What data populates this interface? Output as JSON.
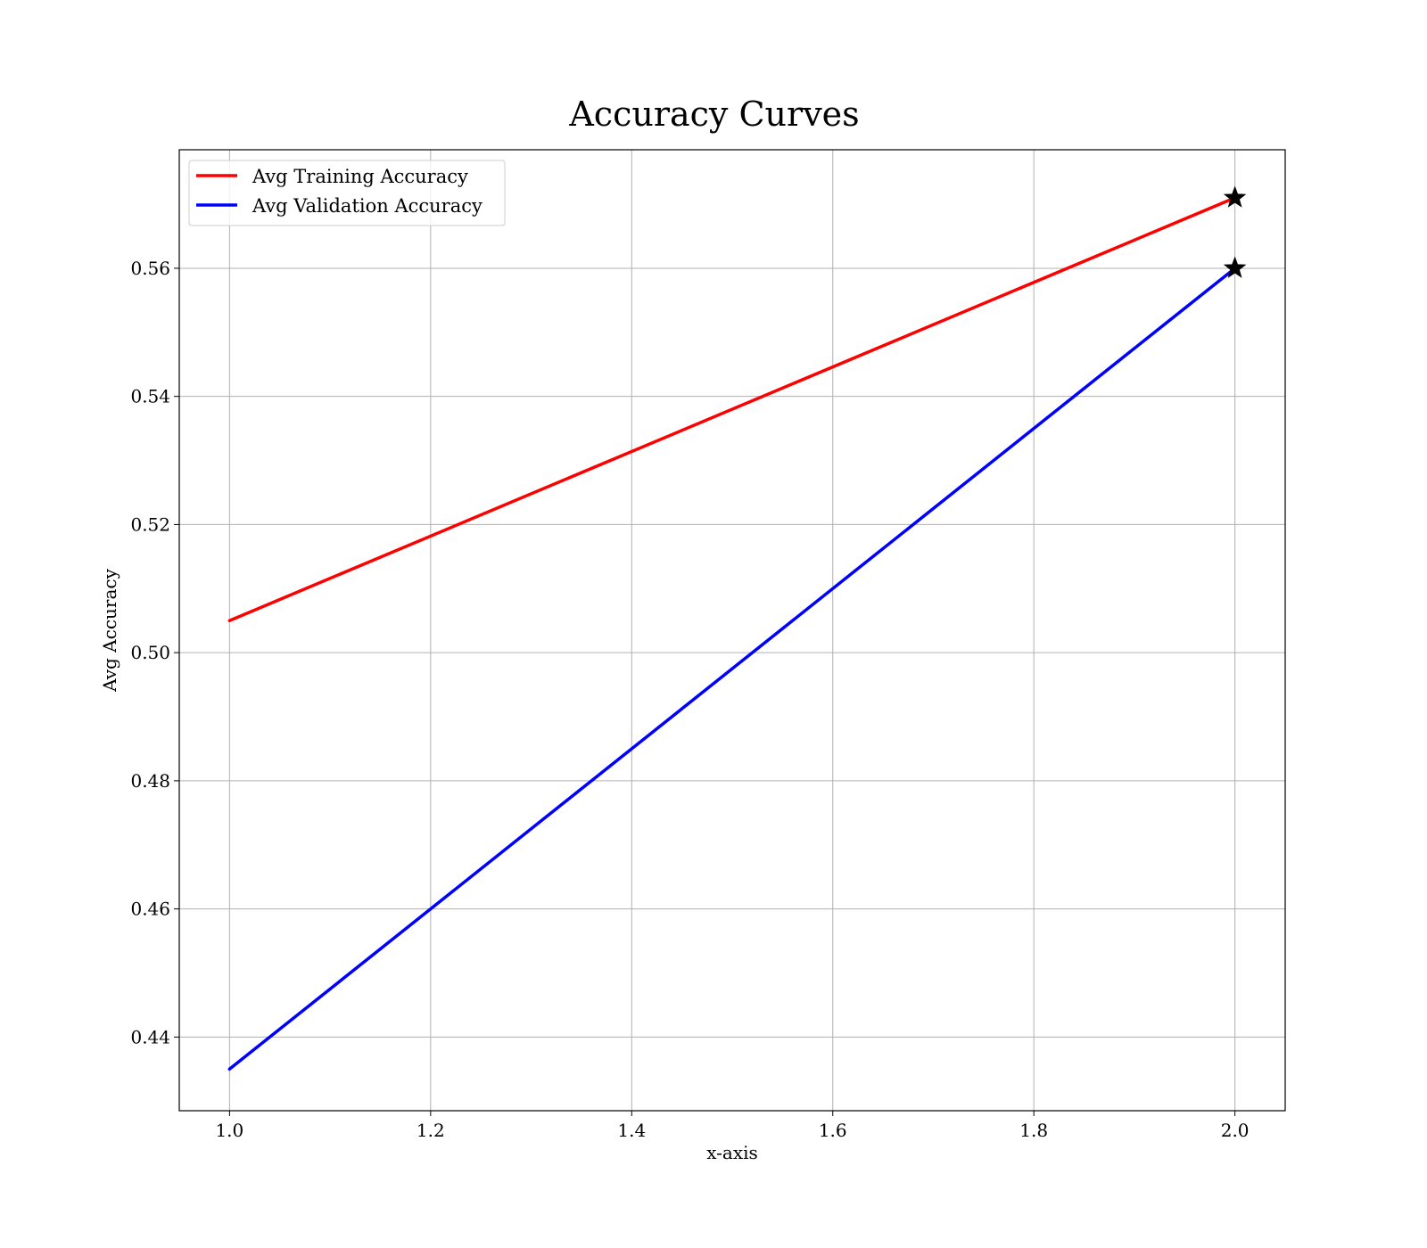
{
  "chart_data": {
    "type": "line",
    "title": "Accuracy Curves",
    "xlabel": "x-axis",
    "ylabel": "Avg Accuracy",
    "xlim": [
      0.95,
      2.05
    ],
    "ylim": [
      0.4285,
      0.5785
    ],
    "grid": true,
    "legend_position": "top-left",
    "x_ticks": [
      1.0,
      1.2,
      1.4,
      1.6,
      1.8,
      2.0
    ],
    "x_tick_labels": [
      "1.0",
      "1.2",
      "1.4",
      "1.6",
      "1.8",
      "2.0"
    ],
    "y_ticks": [
      0.44,
      0.46,
      0.48,
      0.5,
      0.52,
      0.54,
      0.56
    ],
    "y_tick_labels": [
      "0.44",
      "0.46",
      "0.48",
      "0.50",
      "0.52",
      "0.54",
      "0.56"
    ],
    "series": [
      {
        "name": "Avg Training Accuracy",
        "color": "#ff0000",
        "x": [
          1.0,
          2.0
        ],
        "y": [
          0.505,
          0.571
        ],
        "marker_at_last": "star"
      },
      {
        "name": "Avg Validation Accuracy",
        "color": "#0000ff",
        "x": [
          1.0,
          2.0
        ],
        "y": [
          0.435,
          0.56
        ],
        "marker_at_last": "star"
      }
    ]
  }
}
